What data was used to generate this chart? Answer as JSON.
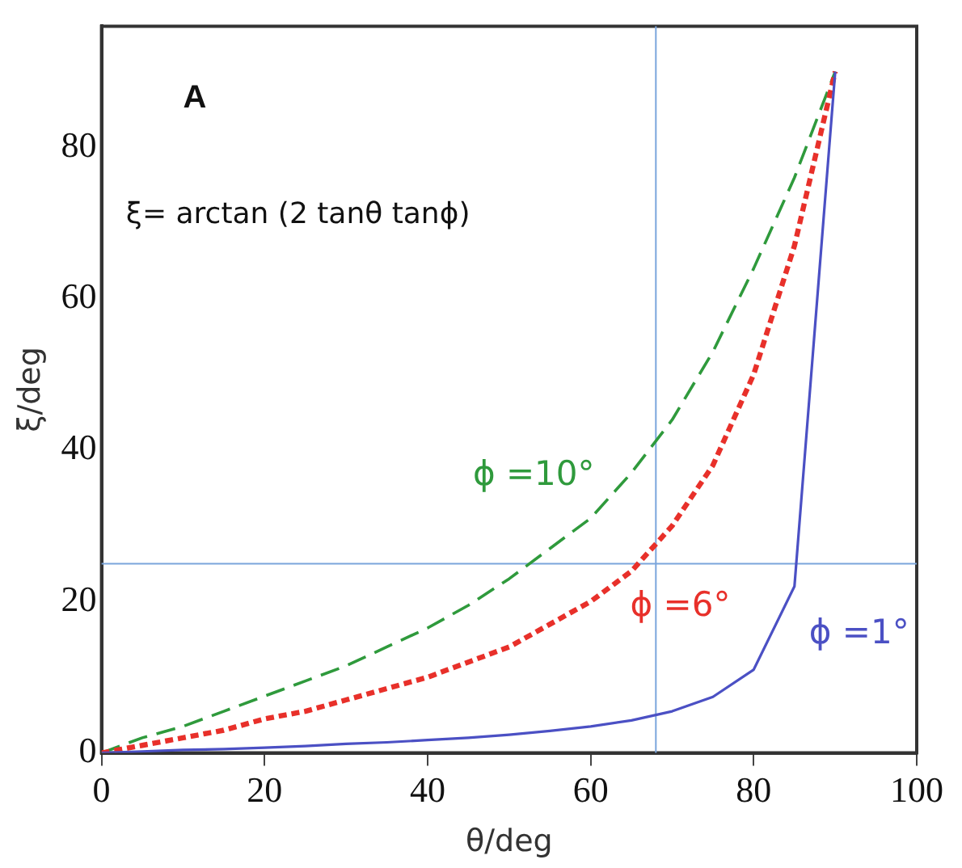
{
  "chart_data": {
    "type": "line",
    "xlabel": "θ/deg",
    "ylabel": "ξ/deg",
    "annotations": [
      "A",
      "ξ= arctan (2 tanθ tanϕ)"
    ],
    "x": [
      0,
      5,
      10,
      15,
      20,
      25,
      30,
      35,
      40,
      45,
      50,
      55,
      60,
      65,
      70,
      75,
      80,
      85,
      90
    ],
    "series": [
      {
        "name": "ϕ =1°",
        "color": "#4b50c4",
        "line_style": "solid",
        "values": [
          0,
          0.2,
          0.4,
          0.5,
          0.7,
          0.9,
          1.2,
          1.4,
          1.7,
          2,
          2.4,
          2.9,
          3.5,
          4.3,
          5.5,
          7.4,
          11,
          22,
          90
        ]
      },
      {
        "name": "ϕ =6°",
        "color": "#e8302a",
        "line_style": "dotted",
        "values": [
          0,
          1,
          2,
          3,
          4.5,
          5.5,
          7,
          8.5,
          10,
          12,
          14,
          17,
          20,
          24,
          30,
          38,
          50,
          67,
          90
        ]
      },
      {
        "name": "ϕ =10°",
        "color": "#2f9a3c",
        "line_style": "dashed",
        "values": [
          0,
          2,
          3.5,
          5.5,
          7.5,
          9.5,
          11.5,
          14,
          16.5,
          19.5,
          23,
          27,
          31,
          37,
          44,
          53,
          64,
          76,
          90
        ]
      }
    ],
    "xlim": [
      0,
      100
    ],
    "xticks": [
      0,
      20,
      40,
      60,
      80,
      100
    ],
    "ylim": [
      0,
      96
    ],
    "yticks": [
      0,
      20,
      40,
      60,
      80
    ],
    "ref_lines": [
      {
        "axis": "x",
        "value": 68,
        "color": "#7aa5dc"
      },
      {
        "axis": "y",
        "value": 25,
        "color": "#7aa5dc"
      }
    ],
    "grid": false,
    "legend": false,
    "marker": "none"
  }
}
